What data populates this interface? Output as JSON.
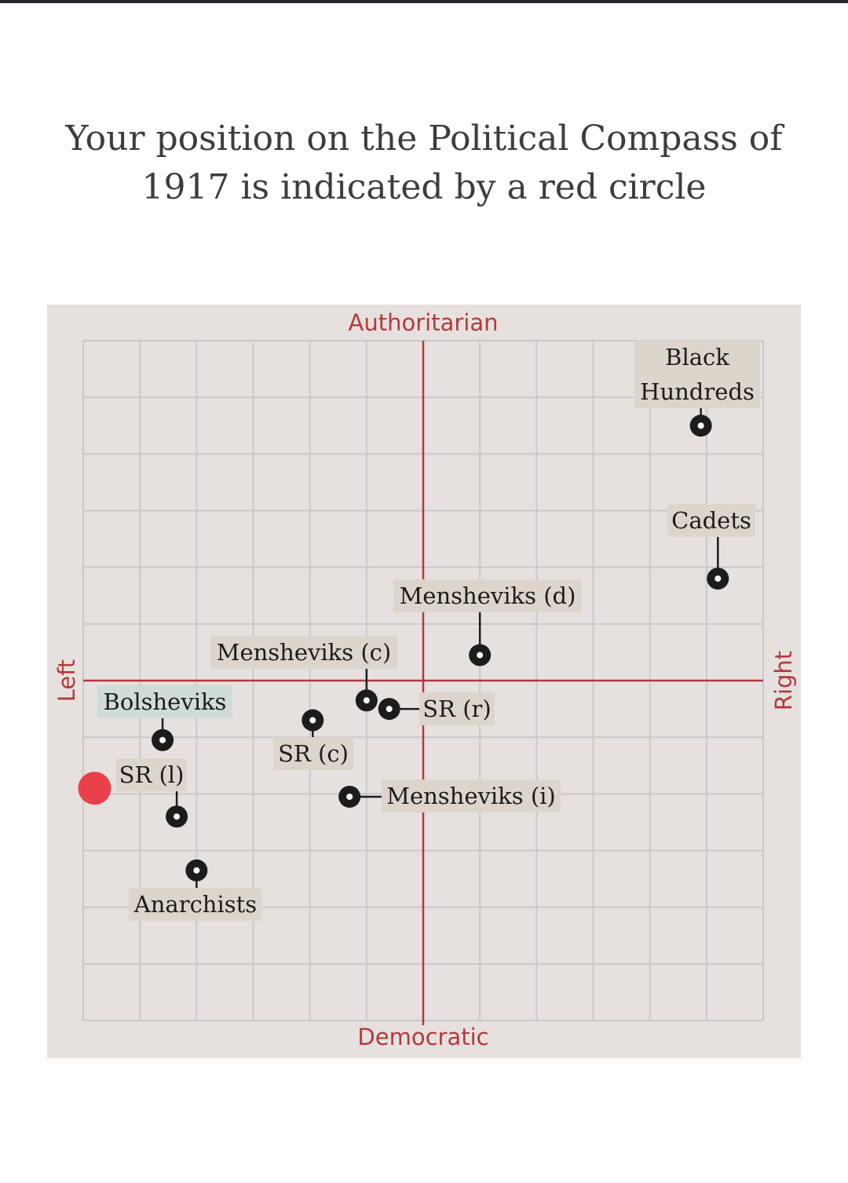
{
  "page": {
    "title": "Your position on the Political Compass of 1917 is indicated by a red circle"
  },
  "chart_data": {
    "type": "scatter",
    "title": "Your position on the Political Compass of 1917 is indicated by a red circle",
    "axes": {
      "top": "Authoritarian",
      "bottom": "Democratic",
      "left": "Left",
      "right": "Right"
    },
    "xlim": [
      -6,
      6
    ],
    "ylim": [
      -6,
      6
    ],
    "grid": true,
    "colors": {
      "axis": "#b23a3e",
      "user": "#e8333c",
      "point": "#1c1c1c",
      "label_bg": "#ddd5cc",
      "highlight_bg": "#cfdcd7",
      "panel": "#e6e1de",
      "grid": "#c9c9c9"
    },
    "user_position": {
      "x": -5.8,
      "y": -1.9
    },
    "points": [
      {
        "name": "Black Hundreds",
        "label": "Black\nHundreds",
        "x": 4.9,
        "y": 4.5
      },
      {
        "name": "Cadets",
        "label": "Cadets",
        "x": 5.2,
        "y": 1.8
      },
      {
        "name": "Mensheviks (d)",
        "label": "Mensheviks (d)",
        "x": 1.0,
        "y": 0.45
      },
      {
        "name": "Mensheviks (c)",
        "label": "Mensheviks (c)",
        "x": -1.0,
        "y": -0.35
      },
      {
        "name": "SR (r)",
        "label": "SR (r)",
        "x": -0.6,
        "y": -0.5
      },
      {
        "name": "SR (c)",
        "label": "SR (c)",
        "x": -1.95,
        "y": -0.7
      },
      {
        "name": "Bolsheviks",
        "label": "Bolsheviks",
        "x": -4.6,
        "y": -1.05
      },
      {
        "name": "Mensheviks (i)",
        "label": "Mensheviks (i)",
        "x": -1.3,
        "y": -2.05
      },
      {
        "name": "SR (l)",
        "label": "SR (l)",
        "x": -4.35,
        "y": -2.4
      },
      {
        "name": "Anarchists",
        "label": "Anarchists",
        "x": -4.0,
        "y": -3.35
      }
    ]
  }
}
